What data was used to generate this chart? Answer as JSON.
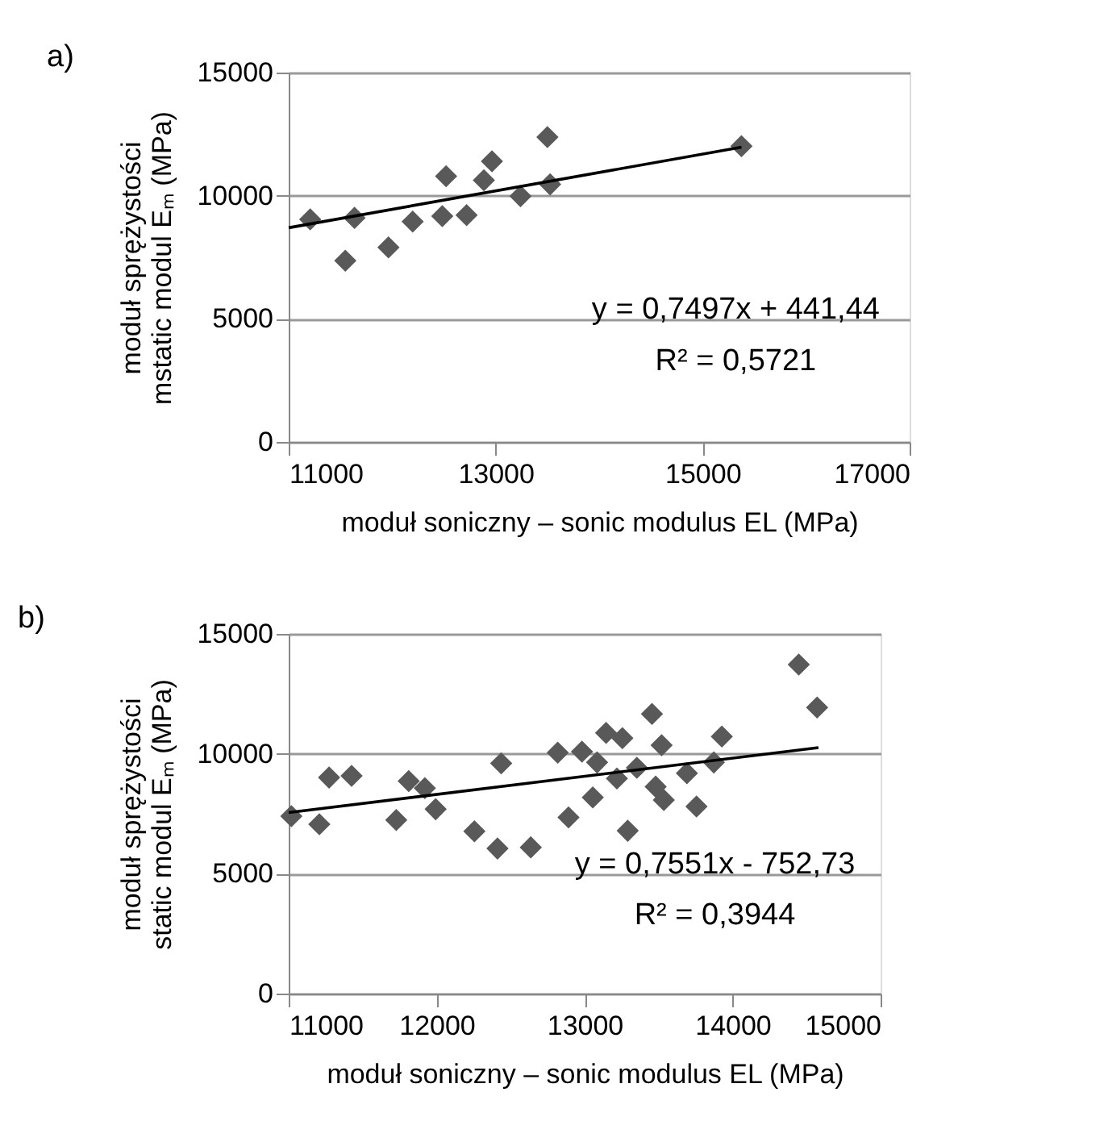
{
  "chart_data": [
    {
      "type": "scatter",
      "xlabel": "moduł soniczny – sonic modulus   EL (MPa)",
      "ylabel": [
        "moduł sprężystości",
        "mstatic modul Eₘ (MPa)"
      ],
      "annotations": [
        "a)",
        "y = 0,7497x + 441,44",
        "R² = 0,5721"
      ],
      "xlim": [
        11000,
        17000
      ],
      "xticks": [
        11000,
        13000,
        15000,
        17000
      ],
      "ylim": [
        0,
        15000
      ],
      "yticks": [
        0,
        5000,
        10000,
        15000
      ],
      "grid": "y",
      "marker": "diamond",
      "series": [
        {
          "type": "scatter",
          "color": "#595959",
          "x": [
            11208,
            11547,
            11636,
            11964,
            12198,
            12484,
            12521,
            12719,
            12886,
            12964,
            13240,
            13500,
            13526,
            15375
          ],
          "values": [
            9040,
            7360,
            9100,
            7900,
            8950,
            9170,
            10790,
            9210,
            10630,
            11400,
            9980,
            12380,
            10460,
            12010
          ]
        },
        {
          "type": "line",
          "color": "#000000",
          "marker": "none",
          "x": [
            11000,
            15375
          ],
          "values": [
            8700,
            11970
          ]
        }
      ]
    },
    {
      "type": "scatter",
      "xlabel": "moduł soniczny – sonic modulus  EL (MPa)",
      "ylabel": [
        "moduł sprężystości",
        "static modul Eₘ (MPa)"
      ],
      "annotations": [
        "b)",
        "y = 0,7551x - 752,73",
        "R² = 0,3944"
      ],
      "xlim": [
        11000,
        15000
      ],
      "xticks": [
        11000,
        12000,
        13000,
        14000,
        15000
      ],
      "ylim": [
        0,
        15000
      ],
      "yticks": [
        0,
        5000,
        10000,
        15000
      ],
      "grid": "y",
      "marker": "diamond",
      "series": [
        {
          "type": "scatter",
          "color": "#595959",
          "x": [
            11018,
            11207,
            11273,
            11425,
            11727,
            11811,
            11920,
            11993,
            12255,
            12411,
            12436,
            12636,
            12818,
            12891,
            12982,
            13055,
            13084,
            13145,
            13218,
            13255,
            13291,
            13353,
            13455,
            13480,
            13520,
            13535,
            13691,
            13756,
            13873,
            13927,
            14447,
            14571
          ],
          "values": [
            7400,
            7060,
            9010,
            9080,
            7240,
            8860,
            8570,
            7690,
            6770,
            6050,
            9600,
            6100,
            10050,
            7350,
            10090,
            8180,
            9640,
            10870,
            8970,
            10650,
            6790,
            9420,
            11660,
            8630,
            10360,
            8070,
            9190,
            7800,
            9640,
            10720,
            13720,
            11930
          ]
        },
        {
          "type": "line",
          "color": "#000000",
          "marker": "none",
          "x": [
            11000,
            14580
          ],
          "values": [
            7550,
            10260
          ]
        }
      ]
    }
  ]
}
